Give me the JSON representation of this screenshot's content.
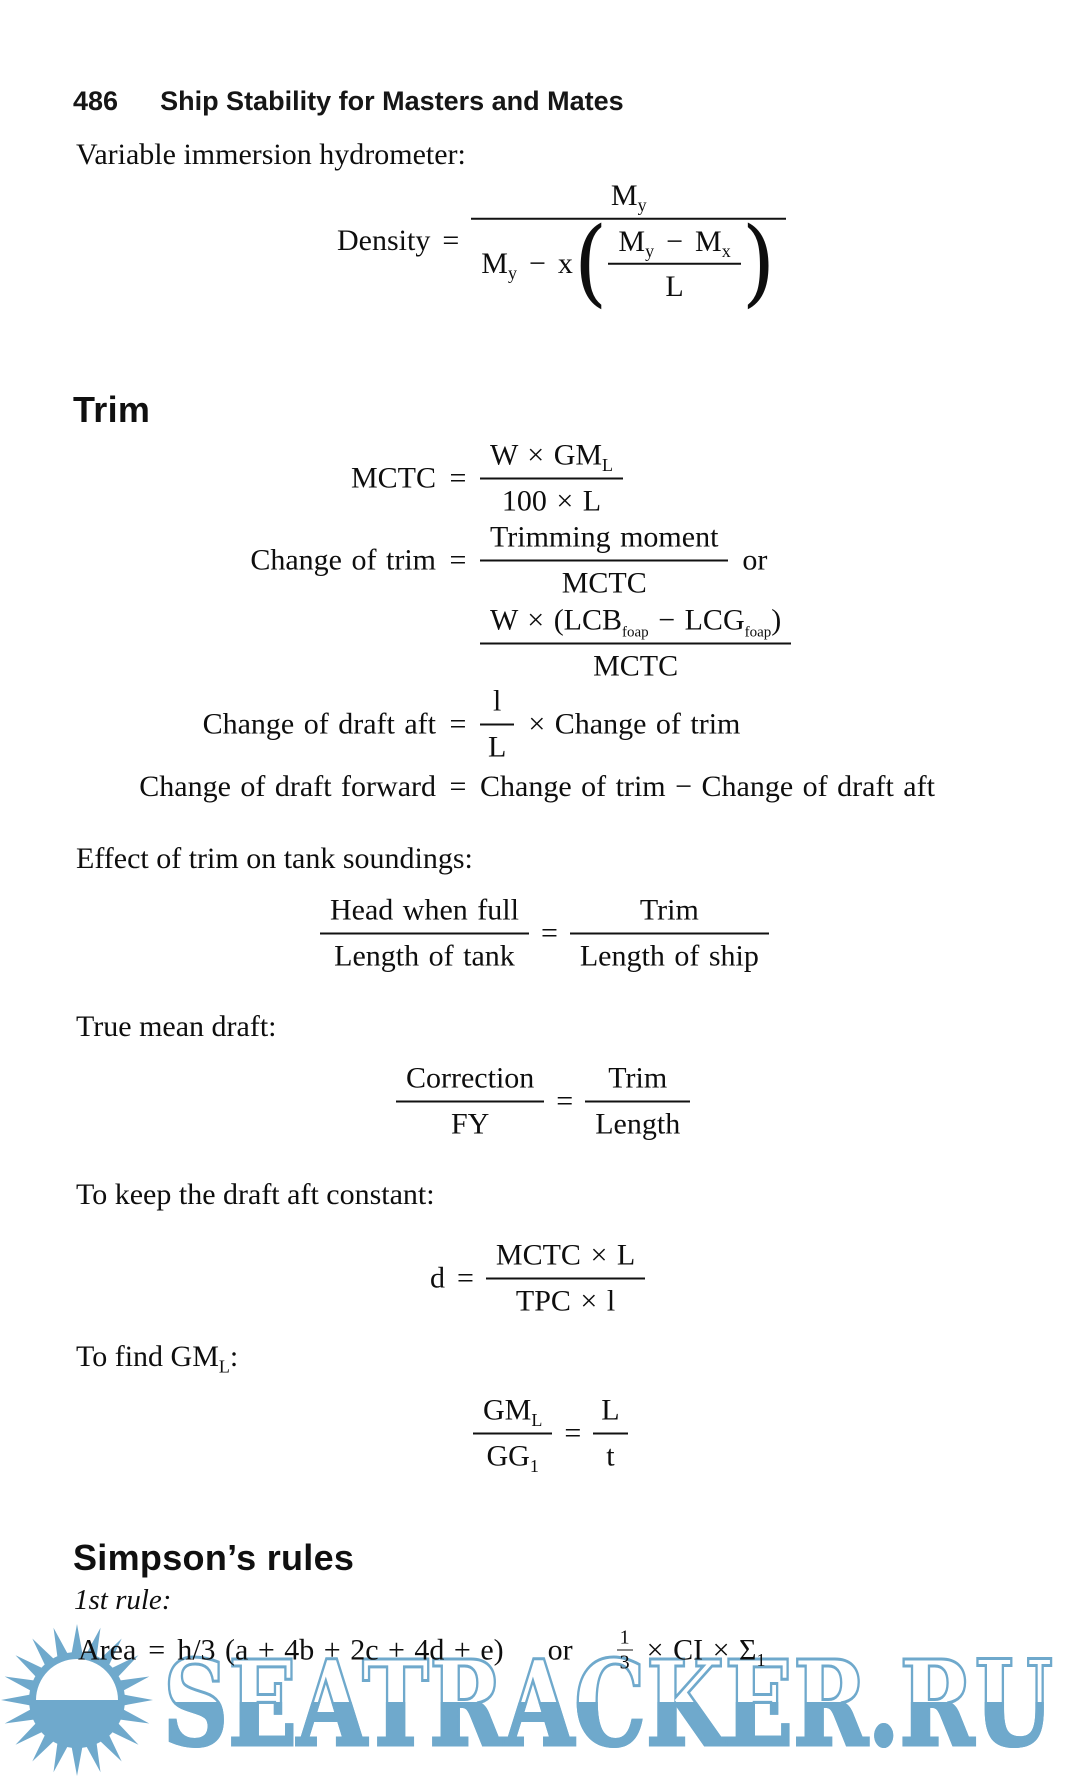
{
  "header": {
    "page_number": "486",
    "title": "Ship Stability for Masters and Mates"
  },
  "intro_line": "Variable immersion hydrometer:",
  "density": {
    "lhs": "Density",
    "eq": "=",
    "num_base": "M",
    "num_sub": "y",
    "den_base": "M",
    "den_sub": "y",
    "minus": "−",
    "x_var": "x",
    "open_paren": "(",
    "close_paren": ")",
    "inner_num_base1": "M",
    "inner_num_sub1": "y",
    "inner_minus": "−",
    "inner_num_base2": "M",
    "inner_num_sub2": "x",
    "inner_den": "L"
  },
  "trim": {
    "heading": "Trim",
    "mctc": {
      "lhs": "MCTC",
      "eq": "=",
      "num_pre": "W × GM",
      "num_sub": "L",
      "den": "100 × L"
    },
    "change_of_trim": {
      "lhs": "Change of trim",
      "eq": "=",
      "num": "Trimming moment",
      "den": "MCTC",
      "or_label": "or"
    },
    "moment_frac": {
      "num_pre": "W × (LCB",
      "sub1": "foap",
      "num_mid": " − LCG",
      "sub2": "foap",
      "num_post": ")",
      "den": "MCTC"
    },
    "draft_aft": {
      "lhs": "Change of draft aft",
      "eq": "=",
      "num": "l",
      "den": "L",
      "rhs": "× Change of trim"
    },
    "draft_forward": {
      "lhs": "Change of draft forward",
      "eq": "=",
      "rhs": "Change of trim − Change of draft aft"
    }
  },
  "effect_line": "Effect of trim on tank soundings:",
  "tank_eq": {
    "num1": "Head when full",
    "den1": "Length of tank",
    "eq": "=",
    "num2": "Trim",
    "den2": "Length of ship"
  },
  "true_mean_line": "True mean draft:",
  "correction_eq": {
    "num1": "Correction",
    "den1": "FY",
    "eq": "=",
    "num2": "Trim",
    "den2": "Length"
  },
  "keep_line": "To keep the draft aft constant:",
  "d_eq": {
    "lhs": "d",
    "eq": "=",
    "num": "MCTC × L",
    "den": "TPC × l"
  },
  "find_line": {
    "pre": "To find GM",
    "sub": "L",
    "post": ":"
  },
  "gm_eq": {
    "num1_base": "GM",
    "num1_sub": "L",
    "den1_base": "GG",
    "den1_sub": "1",
    "eq": "=",
    "num2": "L",
    "den2": "t"
  },
  "simpsons": {
    "heading": "Simpson’s rules",
    "first_rule": "1st rule:",
    "area": {
      "lhs": "Area",
      "eq": "=",
      "body": "h/3 (a + 4b + 2c + 4d + e)",
      "or_label": "or",
      "frac_num": "1",
      "frac_den": "3",
      "tail_pre": "× CI × Σ",
      "tail_sub": "1"
    }
  },
  "watermark": {
    "text": "SEATRACKER.RU",
    "color": "#6fa9cc"
  }
}
